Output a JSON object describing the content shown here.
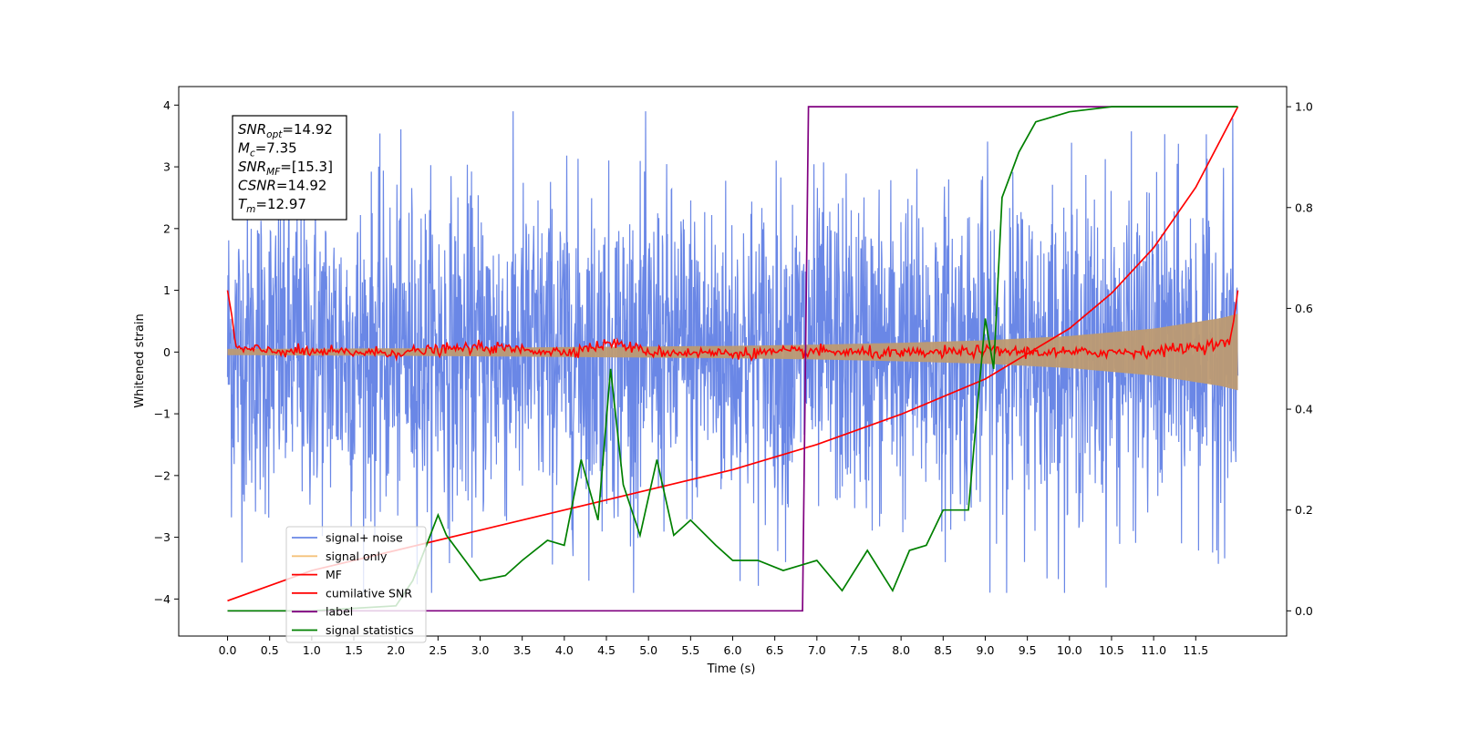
{
  "chart_data": {
    "type": "line",
    "xlabel": "Time (s)",
    "ylabel": "Whitened strain",
    "xlim": [
      -0.58,
      12.58
    ],
    "ylim_left": [
      -4.6,
      4.3
    ],
    "ylim_right": [
      -0.05,
      1.04
    ],
    "x_ticks": [
      0.0,
      0.5,
      1.0,
      1.5,
      2.0,
      2.5,
      3.0,
      3.5,
      4.0,
      4.5,
      5.0,
      5.5,
      6.0,
      6.5,
      7.0,
      7.5,
      8.0,
      8.5,
      9.0,
      9.5,
      10.0,
      10.5,
      11.0,
      11.5
    ],
    "x_tick_labels": [
      "0.0",
      "0.5",
      "1.0",
      "1.5",
      "2.0",
      "2.5",
      "3.0",
      "3.5",
      "4.0",
      "4.5",
      "5.0",
      "5.5",
      "6.0",
      "6.5",
      "7.0",
      "7.5",
      "8.0",
      "8.5",
      "9.0",
      "9.5",
      "10.0",
      "10.5",
      "11.0",
      "11.5"
    ],
    "y_left_ticks": [
      -4,
      -3,
      -2,
      -1,
      0,
      1,
      2,
      3,
      4
    ],
    "y_left_tick_labels": [
      "−4",
      "−3",
      "−2",
      "−1",
      "0",
      "1",
      "2",
      "3",
      "4"
    ],
    "y_right_ticks": [
      0.0,
      0.2,
      0.4,
      0.6,
      0.8,
      1.0
    ],
    "y_right_tick_labels": [
      "0.0",
      "0.2",
      "0.4",
      "0.6",
      "0.8",
      "1.0"
    ],
    "grid": false,
    "legend_position": "lower-left",
    "series": [
      {
        "name": "signal+ noise",
        "axis": "left",
        "color": "#6a87e6",
        "description_type": "noise band",
        "x_range": [
          0.0,
          12.0
        ],
        "typical_amplitude": 1.3,
        "max_abs": 3.9
      },
      {
        "name": "signal only",
        "axis": "left",
        "color": "#f5c27a",
        "description_type": "chirp envelope",
        "x": [
          0,
          1,
          2,
          3,
          4,
          5,
          6,
          7,
          8,
          9,
          10,
          11,
          11.8,
          12
        ],
        "envelope": [
          0.05,
          0.055,
          0.06,
          0.07,
          0.08,
          0.09,
          0.1,
          0.12,
          0.15,
          0.19,
          0.26,
          0.38,
          0.55,
          0.62
        ]
      },
      {
        "name": "MF",
        "axis": "left",
        "color": "#ff0000",
        "x": [
          0.0,
          0.05,
          0.1,
          0.5,
          1,
          2,
          3,
          4,
          4.6,
          5,
          6,
          7,
          8,
          9,
          10,
          11,
          11.9,
          11.95,
          12.0
        ],
        "y": [
          1.0,
          0.6,
          0.05,
          0.02,
          0.0,
          -0.01,
          0.08,
          0.0,
          0.15,
          0.0,
          -0.02,
          0.01,
          -0.03,
          0.02,
          -0.01,
          0.01,
          0.15,
          0.5,
          1.0
        ]
      },
      {
        "name": "cumilative SNR",
        "axis": "right",
        "color": "#ff0000",
        "x": [
          0,
          0.5,
          1,
          2,
          3,
          4,
          5,
          6,
          7,
          8,
          9,
          10,
          10.5,
          11,
          11.5,
          12
        ],
        "y": [
          0.02,
          0.05,
          0.08,
          0.12,
          0.16,
          0.2,
          0.24,
          0.28,
          0.33,
          0.39,
          0.46,
          0.56,
          0.63,
          0.72,
          0.84,
          1.0
        ]
      },
      {
        "name": "label",
        "axis": "right",
        "color": "#800080",
        "x": [
          0.0,
          6.83,
          6.9,
          12.0
        ],
        "y": [
          0.0,
          0.0,
          1.0,
          1.0
        ]
      },
      {
        "name": "signal statistics",
        "axis": "right",
        "color": "#008000",
        "x": [
          0.0,
          1.0,
          2.0,
          2.2,
          2.5,
          2.6,
          3.0,
          3.3,
          3.5,
          3.8,
          4.0,
          4.2,
          4.4,
          4.55,
          4.7,
          4.9,
          5.1,
          5.3,
          5.5,
          5.8,
          6.0,
          6.3,
          6.6,
          7.0,
          7.3,
          7.6,
          7.9,
          8.1,
          8.3,
          8.5,
          8.8,
          9.0,
          9.1,
          9.2,
          9.4,
          9.6,
          10.0,
          10.5,
          11.0,
          12.0
        ],
        "y": [
          0.0,
          0.0,
          0.01,
          0.06,
          0.19,
          0.15,
          0.06,
          0.07,
          0.1,
          0.14,
          0.13,
          0.3,
          0.18,
          0.48,
          0.25,
          0.15,
          0.3,
          0.15,
          0.18,
          0.13,
          0.1,
          0.1,
          0.08,
          0.1,
          0.04,
          0.12,
          0.04,
          0.12,
          0.13,
          0.2,
          0.2,
          0.58,
          0.48,
          0.82,
          0.91,
          0.97,
          0.99,
          1.0,
          1.0,
          1.0
        ]
      }
    ],
    "annotation_lines": [
      {
        "base": "SNR",
        "sub": "opt",
        "value": "=14.92"
      },
      {
        "base": "M",
        "sub": "c",
        "value": "=7.35"
      },
      {
        "base": "SNR",
        "sub": "MF",
        "value": "=[15.3]"
      },
      {
        "base": "CSNR",
        "sub": "",
        "value": "=14.92"
      },
      {
        "base": "T",
        "sub": "m",
        "value": "=12.97"
      }
    ]
  }
}
